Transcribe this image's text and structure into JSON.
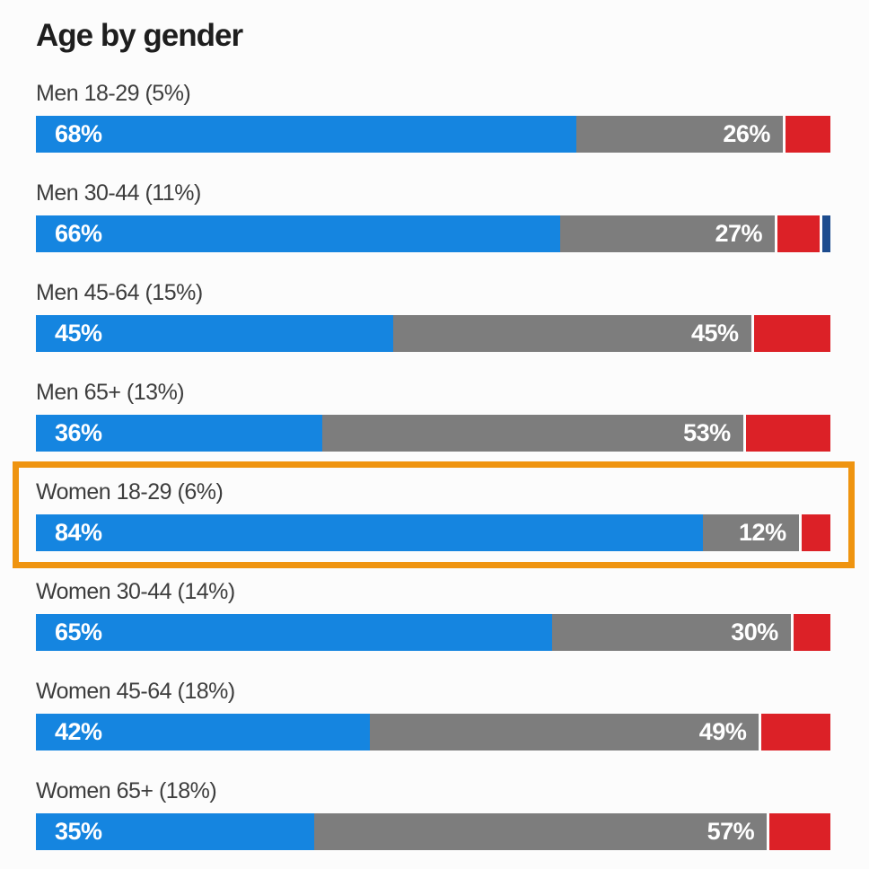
{
  "title": "Age by gender",
  "colors": {
    "bar_blue": "#1585e0",
    "bar_gray": "#7d7d7d",
    "bar_red": "#dc2127",
    "bar_navy": "#1d4c8e",
    "highlight_orange": "#ef9410",
    "label_text": "#3d3d3d",
    "title_text": "#1e1e1e",
    "value_text": "#ffffff"
  },
  "chart_data": {
    "type": "bar",
    "stacked": true,
    "orientation": "horizontal",
    "title": "Age by gender",
    "xlabel": "",
    "ylabel": "",
    "xlim": [
      0,
      100
    ],
    "grid": false,
    "legend": "none",
    "categories": [
      "Men 18-29 (5%)",
      "Men 30-44 (11%)",
      "Men 45-64 (15%)",
      "Men 65+ (13%)",
      "Women 18-29 (6%)",
      "Women 30-44 (14%)",
      "Women 45-64 (18%)",
      "Women 65+ (18%)"
    ],
    "series": [
      {
        "name": "blue",
        "color": "#1585e0",
        "values": [
          68,
          66,
          45,
          36,
          84,
          65,
          42,
          35
        ],
        "labels": [
          "68%",
          "66%",
          "45%",
          "36%",
          "84%",
          "65%",
          "42%",
          "35%"
        ]
      },
      {
        "name": "gray",
        "color": "#7d7d7d",
        "values": [
          26,
          27,
          45,
          53,
          12,
          30,
          49,
          57
        ],
        "labels": [
          "26%",
          "27%",
          "45%",
          "53%",
          "12%",
          "30%",
          "49%",
          "57%"
        ]
      },
      {
        "name": "red",
        "color": "#dc2127",
        "values": [
          6,
          6,
          10,
          11,
          4,
          5,
          9,
          8
        ],
        "labels": [
          "",
          "",
          "",
          "",
          "",
          "",
          "",
          ""
        ]
      },
      {
        "name": "navy",
        "color": "#1d4c8e",
        "values": [
          0,
          1,
          0,
          0,
          0,
          0,
          0,
          0
        ],
        "labels": [
          "",
          "",
          "",
          "",
          "",
          "",
          "",
          ""
        ]
      }
    ],
    "value_labels_shown_for": [
      "blue",
      "gray"
    ],
    "highlighted_category": "Women 18-29 (6%)",
    "highlight_color": "#ef9410"
  }
}
